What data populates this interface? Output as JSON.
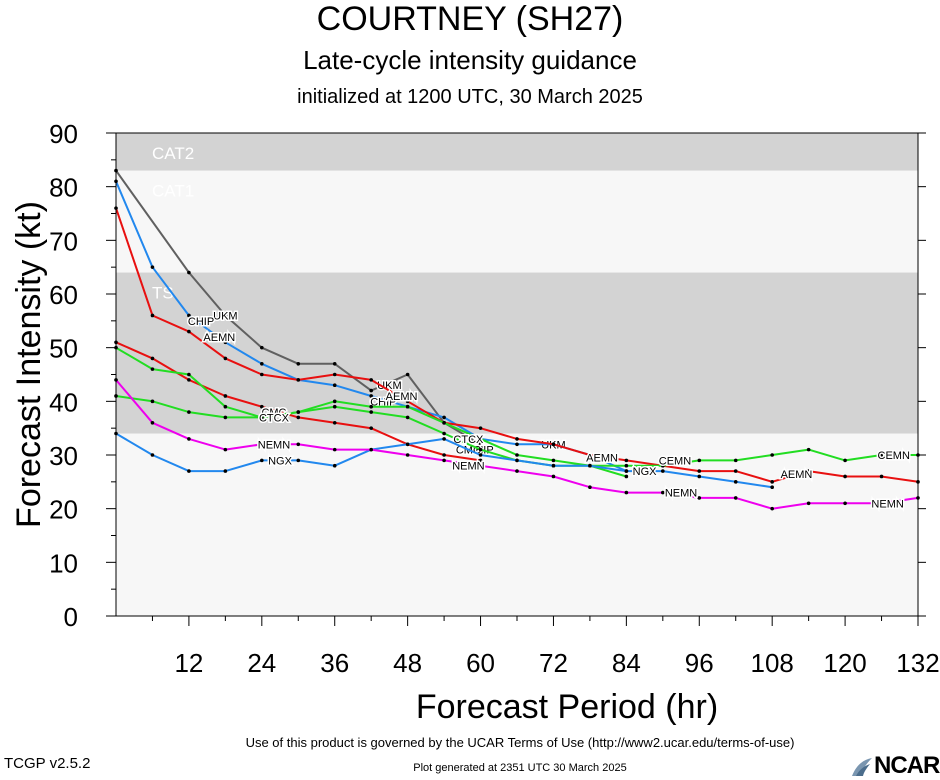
{
  "header": {
    "title": "COURTNEY (SH27)",
    "subtitle": "Late-cycle intensity guidance",
    "initialized": "initialized at 1200 UTC, 30 March 2025"
  },
  "footer": {
    "terms": "Use of this product is governed by the UCAR Terms of Use (http://www2.ucar.edu/terms-of-use)",
    "version": "TCGP v2.5.2",
    "generated": "Plot generated at 2351 UTC   30 March 2025",
    "logo_text": "NCAR"
  },
  "chart_data": {
    "type": "line",
    "xlabel": "Forecast Period (hr)",
    "ylabel": "Forecast Intensity (kt)",
    "xlim": [
      0,
      132
    ],
    "ylim": [
      0,
      90
    ],
    "xticks": [
      12,
      24,
      36,
      48,
      60,
      72,
      84,
      96,
      108,
      120,
      132
    ],
    "yticks": [
      0,
      10,
      20,
      30,
      40,
      50,
      60,
      70,
      80,
      90
    ],
    "bands": [
      {
        "label": "",
        "from": 0,
        "to": 34,
        "color": "#f7f7f7"
      },
      {
        "label": "TS",
        "from": 34,
        "to": 64,
        "color": "#d3d3d3"
      },
      {
        "label": "CAT1",
        "from": 64,
        "to": 83,
        "color": "#f7f7f7"
      },
      {
        "label": "CAT2",
        "from": 83,
        "to": 90,
        "color": "#d3d3d3"
      }
    ],
    "series": [
      {
        "name": "UKM",
        "color": "#606060",
        "x": [
          0,
          12,
          18,
          24,
          30,
          36,
          42,
          48,
          54,
          60
        ],
        "y": [
          83,
          64,
          56,
          50,
          47,
          47,
          42,
          45,
          36,
          32
        ],
        "labels": [
          {
            "x": 18,
            "y": 56
          },
          {
            "x": 45,
            "y": 43
          },
          {
            "x": 72,
            "y": 32
          }
        ]
      },
      {
        "name": "CHIP",
        "color": "#2288ee",
        "x": [
          0,
          6,
          12,
          18,
          24,
          30,
          36,
          42,
          48,
          54,
          60,
          66,
          72,
          78,
          84,
          90,
          96,
          102,
          108
        ],
        "y": [
          81,
          65,
          56,
          51,
          47,
          44,
          43,
          41,
          39,
          37,
          33,
          32,
          32,
          30,
          27,
          27,
          26,
          25,
          24
        ],
        "labels": [
          {
            "x": 14,
            "y": 55
          },
          {
            "x": 44,
            "y": 40
          },
          {
            "x": 60,
            "y": 31
          }
        ]
      },
      {
        "name": "AEMN",
        "color": "#e81010",
        "x": [
          0,
          6,
          12,
          18,
          24,
          30,
          36,
          42,
          48,
          54,
          60,
          66,
          72,
          78,
          84,
          90,
          96,
          102,
          108,
          114,
          120,
          126,
          132
        ],
        "y": [
          76,
          56,
          53,
          48,
          45,
          44,
          45,
          44,
          40,
          36,
          35,
          33,
          32,
          30,
          29,
          28,
          27,
          27,
          25,
          27,
          26,
          26,
          25
        ],
        "labels": [
          {
            "x": 17,
            "y": 52
          },
          {
            "x": 47,
            "y": 41
          },
          {
            "x": 80,
            "y": 29.5
          },
          {
            "x": 112,
            "y": 26.5
          }
        ]
      },
      {
        "name": "CMC",
        "color": "#e81010",
        "x": [
          0,
          6,
          12,
          18,
          24,
          30,
          36,
          42,
          48,
          54,
          60
        ],
        "y": [
          51,
          48,
          44,
          41,
          39,
          37,
          36,
          35,
          32,
          30,
          29
        ],
        "labels": [
          {
            "x": 26,
            "y": 38
          },
          {
            "x": 58,
            "y": 31
          }
        ]
      },
      {
        "name": "CEMN",
        "color": "#22dd22",
        "x": [
          0,
          6,
          12,
          18,
          24,
          30,
          36,
          42,
          48,
          54,
          60,
          66,
          72,
          78,
          84,
          90,
          96,
          102,
          108,
          114,
          120,
          126,
          132
        ],
        "y": [
          41,
          40,
          38,
          37,
          37,
          38,
          40,
          39,
          39,
          36,
          33,
          30,
          29,
          28,
          28,
          28,
          29,
          29,
          30,
          31,
          29,
          30,
          30
        ],
        "labels": [
          {
            "x": 92,
            "y": 29
          },
          {
            "x": 128,
            "y": 30
          }
        ]
      },
      {
        "name": "CTCX",
        "color": "#22dd22",
        "x": [
          0,
          6,
          12,
          18,
          24,
          30,
          36,
          42,
          48,
          54,
          60,
          66,
          72,
          78,
          84
        ],
        "y": [
          50,
          46,
          45,
          39,
          37,
          38,
          39,
          38,
          37,
          34,
          31,
          29,
          28,
          28,
          26
        ],
        "labels": [
          {
            "x": 26,
            "y": 37
          },
          {
            "x": 58,
            "y": 33
          }
        ]
      },
      {
        "name": "NGX",
        "color": "#2288ee",
        "x": [
          0,
          6,
          12,
          18,
          24,
          30,
          36,
          42,
          48,
          54,
          60,
          66,
          72,
          78,
          84
        ],
        "y": [
          34,
          30,
          27,
          27,
          29,
          29,
          28,
          31,
          32,
          33,
          30,
          29,
          28,
          28,
          27
        ],
        "labels": [
          {
            "x": 27,
            "y": 29
          },
          {
            "x": 87,
            "y": 27
          }
        ]
      },
      {
        "name": "NEMN",
        "color": "#ee00ee",
        "x": [
          0,
          6,
          12,
          18,
          24,
          30,
          36,
          42,
          48,
          54,
          60,
          66,
          72,
          78,
          84,
          90,
          96,
          102,
          108,
          114,
          120,
          126,
          132
        ],
        "y": [
          44,
          36,
          33,
          31,
          32,
          32,
          31,
          31,
          30,
          29,
          28,
          27,
          26,
          24,
          23,
          23,
          22,
          22,
          20,
          21,
          21,
          21,
          22
        ],
        "labels": [
          {
            "x": 26,
            "y": 32
          },
          {
            "x": 58,
            "y": 28
          },
          {
            "x": 93,
            "y": 23
          },
          {
            "x": 127,
            "y": 21
          }
        ]
      }
    ]
  }
}
